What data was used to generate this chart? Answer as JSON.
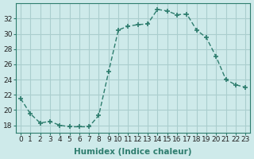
{
  "x": [
    0,
    1,
    2,
    3,
    4,
    5,
    6,
    7,
    8,
    9,
    10,
    11,
    12,
    13,
    14,
    15,
    16,
    17,
    18,
    19,
    20,
    21,
    22,
    23
  ],
  "y": [
    21.5,
    19.5,
    18.3,
    18.5,
    18.0,
    17.8,
    17.8,
    17.8,
    19.3,
    25.0,
    30.5,
    31.0,
    31.2,
    31.3,
    33.2,
    33.0,
    32.5,
    32.6,
    30.5,
    29.5,
    27.0,
    24.0,
    23.3,
    23.0
  ],
  "line_color": "#2e7d6e",
  "marker": "+",
  "marker_size": 4,
  "marker_lw": 1.2,
  "bg_color": "#ceeaea",
  "grid_color": "#aacece",
  "xlabel": "Humidex (Indice chaleur)",
  "ylabel": "",
  "title": "",
  "xlim": [
    -0.5,
    23.5
  ],
  "ylim": [
    17.0,
    34.0
  ],
  "yticks": [
    18,
    20,
    22,
    24,
    26,
    28,
    30,
    32
  ],
  "xticks": [
    0,
    1,
    2,
    3,
    4,
    5,
    6,
    7,
    8,
    9,
    10,
    11,
    12,
    13,
    14,
    15,
    16,
    17,
    18,
    19,
    20,
    21,
    22,
    23
  ],
  "tick_label_fontsize": 6.5,
  "xlabel_fontsize": 7.5,
  "line_width": 1.0
}
